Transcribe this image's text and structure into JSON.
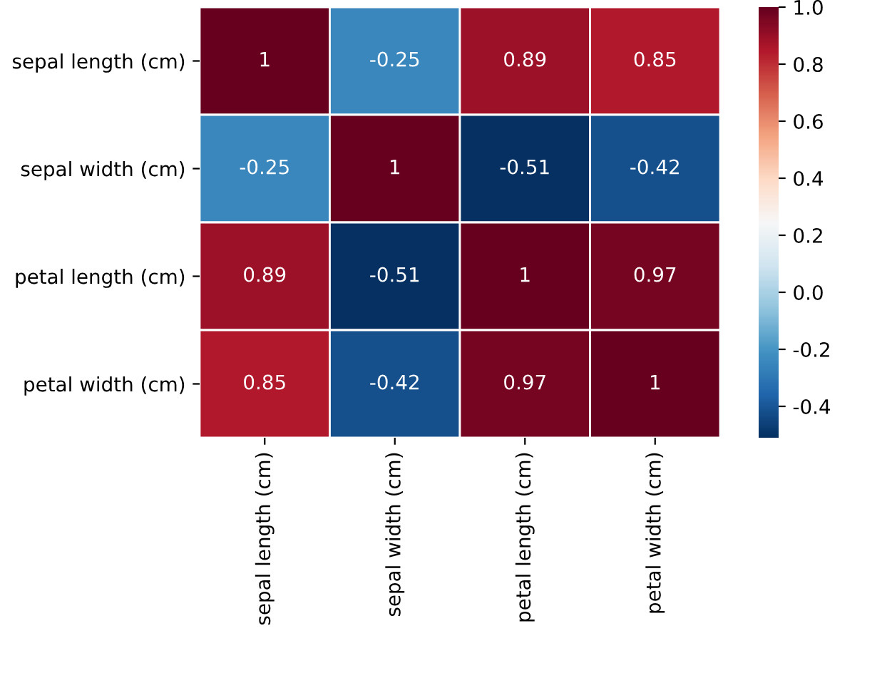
{
  "chart_data": {
    "type": "heatmap",
    "categories": [
      "sepal length (cm)",
      "sepal width (cm)",
      "petal length (cm)",
      "petal width (cm)"
    ],
    "y_categories": [
      "sepal length (cm)",
      "sepal width (cm)",
      "petal length (cm)",
      "petal width (cm)"
    ],
    "cells": [
      [
        1,
        -0.25,
        0.89,
        0.85
      ],
      [
        -0.25,
        1,
        -0.51,
        -0.42
      ],
      [
        0.89,
        -0.51,
        1,
        0.97
      ],
      [
        0.85,
        -0.42,
        0.97,
        1
      ]
    ],
    "data_labels": true,
    "clim": [
      -0.51,
      1
    ],
    "cticks": [
      -0.4,
      -0.2,
      {
        "value": 0,
        "label": "0.0"
      },
      0.2,
      0.4,
      0.6,
      0.8,
      {
        "value": 1,
        "label": "1.0"
      }
    ]
  }
}
